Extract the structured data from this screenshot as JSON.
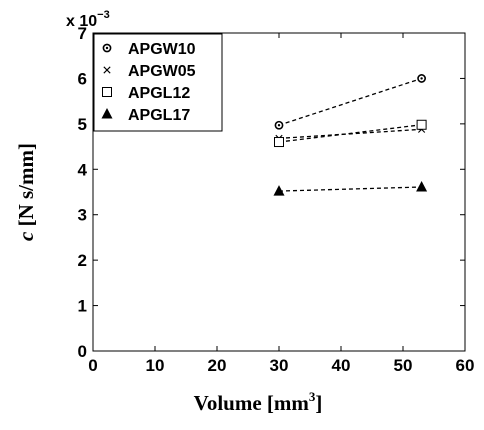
{
  "chart_data": {
    "type": "line",
    "xlabel": "Volume [mm",
    "xlabel_sup": "3",
    "xlabel_tail": "]",
    "ylabel_var": "c",
    "ylabel_unit": " [N s/mm]",
    "y_multiplier_base": "x 10",
    "y_multiplier_exp": "−3",
    "xlim": [
      0,
      60
    ],
    "ylim": [
      0,
      7
    ],
    "xticks": [
      "0",
      "10",
      "20",
      "30",
      "40",
      "50",
      "60"
    ],
    "yticks": [
      "0",
      "1",
      "2",
      "3",
      "4",
      "5",
      "6",
      "7"
    ],
    "grid": false,
    "legend_position": "top-left",
    "x": [
      30,
      53
    ],
    "series": [
      {
        "name": "APGW10",
        "marker": "circle-dot",
        "values": [
          4.97,
          6.0
        ]
      },
      {
        "name": "APGW05",
        "marker": "x",
        "values": [
          4.68,
          4.88
        ]
      },
      {
        "name": "APGL12",
        "marker": "square",
        "values": [
          4.6,
          4.98
        ]
      },
      {
        "name": "APGL17",
        "marker": "triangle",
        "values": [
          3.52,
          3.61
        ]
      }
    ]
  }
}
